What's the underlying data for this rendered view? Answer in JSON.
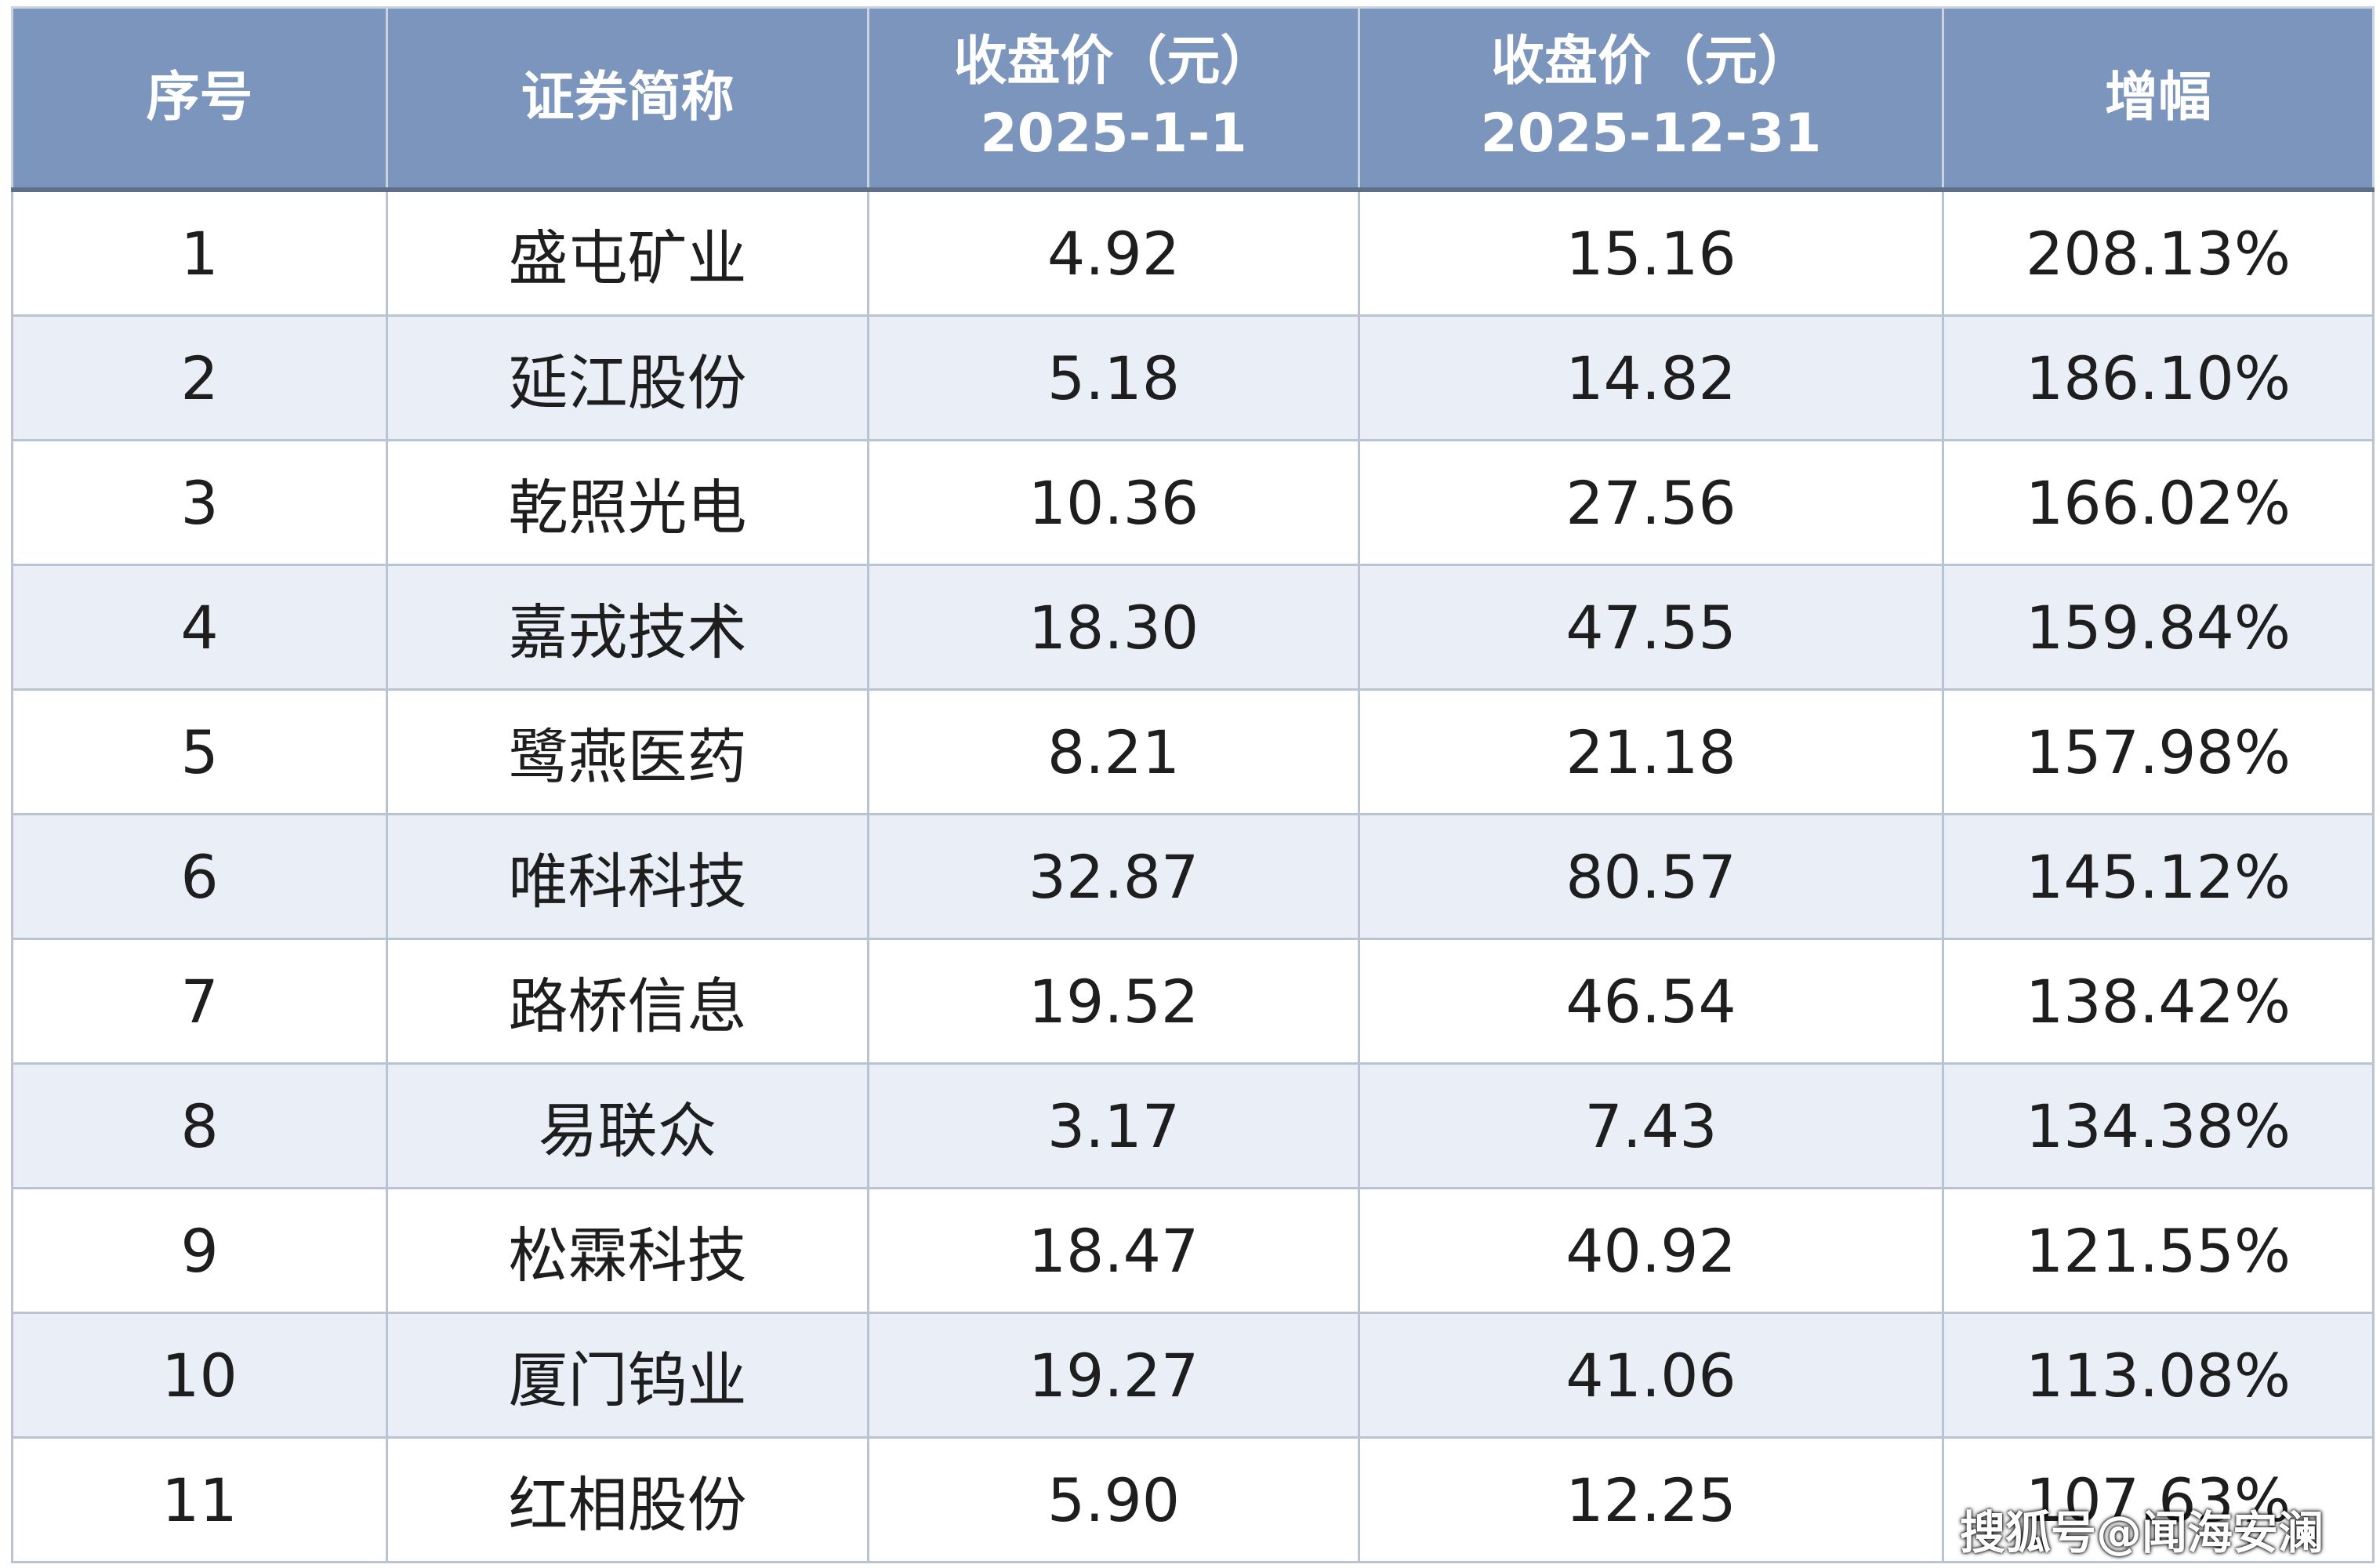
{
  "table": {
    "header": [
      {
        "lines": [
          "序号"
        ]
      },
      {
        "lines": [
          "证券简称"
        ]
      },
      {
        "lines": [
          "收盘价（元）",
          "2025-1-1"
        ]
      },
      {
        "lines": [
          "收盘价（元）",
          "2025-12-31"
        ]
      },
      {
        "lines": [
          "增幅"
        ]
      }
    ],
    "rows": [
      [
        "1",
        "盛屯矿业",
        "4.92",
        "15.16",
        "208.13%"
      ],
      [
        "2",
        "延江股份",
        "5.18",
        "14.82",
        "186.10%"
      ],
      [
        "3",
        "乾照光电",
        "10.36",
        "27.56",
        "166.02%"
      ],
      [
        "4",
        "嘉戎技术",
        "18.30",
        "47.55",
        "159.84%"
      ],
      [
        "5",
        "鹭燕医药",
        "8.21",
        "21.18",
        "157.98%"
      ],
      [
        "6",
        "唯科科技",
        "32.87",
        "80.57",
        "145.12%"
      ],
      [
        "7",
        "路桥信息",
        "19.52",
        "46.54",
        "138.42%"
      ],
      [
        "8",
        "易联众",
        "3.17",
        "7.43",
        "134.38%"
      ],
      [
        "9",
        "松霖科技",
        "18.47",
        "40.92",
        "121.55%"
      ],
      [
        "10",
        "厦门钨业",
        "19.27",
        "41.06",
        "113.08%"
      ],
      [
        "11",
        "红相股份",
        "5.90",
        "12.25",
        "107.63%"
      ]
    ]
  },
  "watermark": "搜狐号@闻海安澜"
}
